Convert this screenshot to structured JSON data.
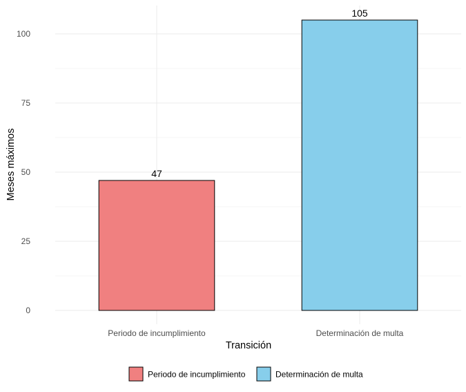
{
  "chart_data": {
    "type": "bar",
    "categories": [
      "Periodo de incumplimiento",
      "Determinación de multa"
    ],
    "values": [
      47,
      105
    ],
    "data_labels": [
      "47",
      "105"
    ],
    "colors": [
      "#f08080",
      "#87ceeb"
    ],
    "bar_outline_color": "#000000",
    "title": "",
    "xlabel": "Transición",
    "ylabel": "Meses máximos",
    "ylim": [
      0,
      110
    ],
    "yticks": [
      0,
      25,
      50,
      75,
      100
    ],
    "ytick_labels": [
      "0",
      "25",
      "50",
      "75",
      "100"
    ],
    "grid": true,
    "legend": {
      "position": "bottom",
      "entries": [
        "Periodo de incumplimiento",
        "Determinación de multa"
      ]
    }
  }
}
